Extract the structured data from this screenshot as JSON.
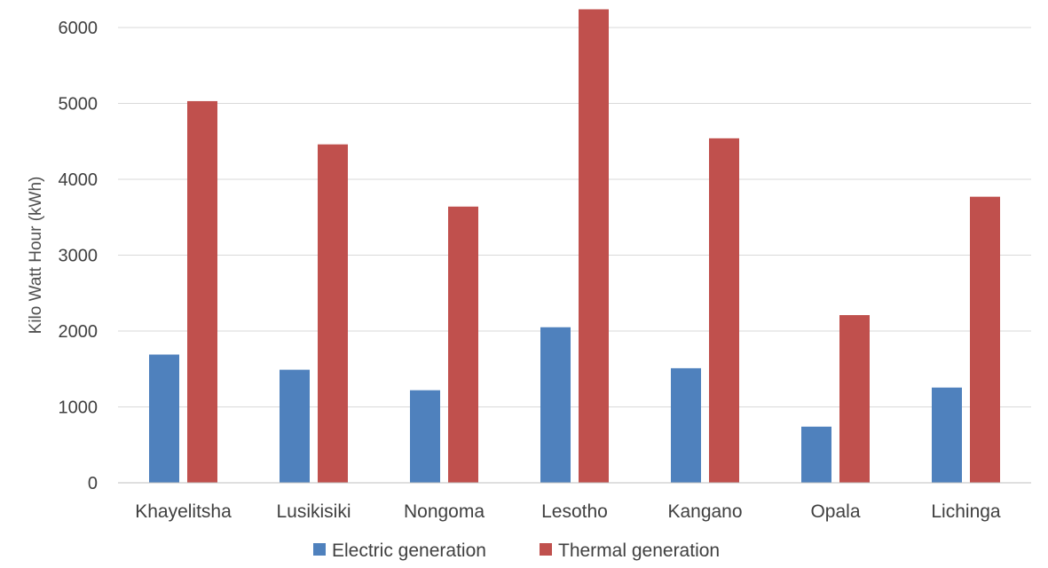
{
  "chart_data": {
    "type": "bar",
    "title": "",
    "xlabel": "",
    "ylabel": "Kilo Watt Hour (kWh)",
    "ylim": [
      0,
      6000
    ],
    "yticks": [
      0,
      1000,
      2000,
      3000,
      4000,
      5000,
      6000
    ],
    "grid": true,
    "legend_position": "bottom",
    "categories": [
      "Khayelitsha",
      "Lusikisiki",
      "Nongoma",
      "Lesotho",
      "Kangano",
      "Opala",
      "Lichinga"
    ],
    "series": [
      {
        "name": "Electric generation",
        "color": "#4f81bd",
        "values": [
          1690,
          1490,
          1220,
          2050,
          1510,
          740,
          1255
        ]
      },
      {
        "name": "Thermal generation",
        "color": "#c0504d",
        "values": [
          5030,
          4460,
          3640,
          6240,
          4540,
          2210,
          3770
        ]
      }
    ]
  }
}
